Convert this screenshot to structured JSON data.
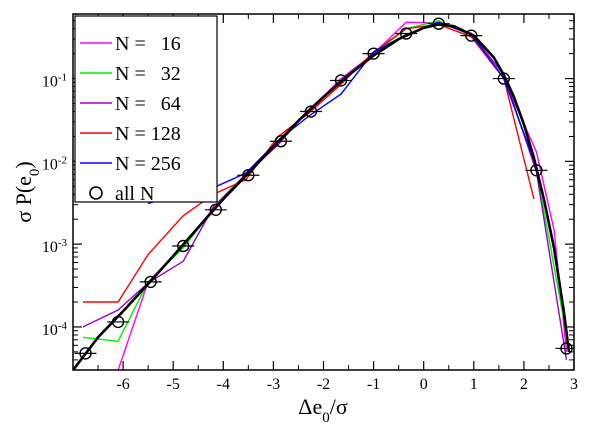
{
  "chart_data": {
    "type": "line",
    "xlabel": "Δe0/σ",
    "ylabel": "σ P(e0)",
    "xlim": [
      -7,
      3
    ],
    "ylim_log10": [
      -4.52,
      -0.22
    ],
    "y_scale": "log",
    "grid": false,
    "legend_placement": "top-left",
    "x_ticks": [
      -6,
      -5,
      -4,
      -3,
      -2,
      -1,
      0,
      1,
      2,
      3
    ],
    "x_tick_labels": [
      "-6",
      "-5",
      "-4",
      "-3",
      "-2",
      "-1",
      "0",
      "1",
      "2",
      "3"
    ],
    "y_ticks": [
      -4,
      -3,
      -2,
      -1
    ],
    "y_tick_labels": [
      "10",
      "10",
      "10",
      "10"
    ],
    "y_tick_exponents": [
      "-4",
      "-3",
      "-2",
      "-1"
    ],
    "series": [
      {
        "name": "N =   16",
        "color": "#ff00ff",
        "points": [
          [
            -6.1,
            3e-05
          ],
          [
            -5.5,
            0.00035
          ],
          [
            -4.8,
            0.00095
          ],
          [
            -4.2,
            0.0027
          ],
          [
            -3.55,
            0.007
          ],
          [
            -2.9,
            0.018
          ],
          [
            -2.3,
            0.04
          ],
          [
            -1.65,
            0.1
          ],
          [
            -1.0,
            0.2
          ],
          [
            -0.35,
            0.48
          ],
          [
            0.3,
            0.47
          ],
          [
            0.95,
            0.35
          ],
          [
            1.6,
            0.1
          ],
          [
            2.25,
            0.013
          ],
          [
            2.6,
            0.0015
          ],
          [
            2.85,
            5e-05
          ]
        ]
      },
      {
        "name": "N =   32",
        "color": "#00ee00",
        "points": [
          [
            -6.8,
            7.5e-05
          ],
          [
            -6.1,
            6.7e-05
          ],
          [
            -5.5,
            0.00035
          ],
          [
            -4.8,
            0.0009
          ],
          [
            -4.2,
            0.0026
          ],
          [
            -3.55,
            0.0068
          ],
          [
            -2.9,
            0.018
          ],
          [
            -2.3,
            0.04
          ],
          [
            -1.65,
            0.095
          ],
          [
            -1.0,
            0.2
          ],
          [
            -0.35,
            0.4
          ],
          [
            0.3,
            0.5
          ],
          [
            0.95,
            0.33
          ],
          [
            1.6,
            0.1
          ],
          [
            2.25,
            0.008
          ],
          [
            2.85,
            8e-05
          ]
        ]
      },
      {
        "name": "N =   64",
        "color": "#9900cc",
        "points": [
          [
            -6.8,
            0.0001
          ],
          [
            -6.1,
            0.00016
          ],
          [
            -5.5,
            0.00034
          ],
          [
            -4.8,
            0.00062
          ],
          [
            -4.2,
            0.0028
          ],
          [
            -3.55,
            0.007
          ],
          [
            -2.9,
            0.016
          ],
          [
            -2.3,
            0.042
          ],
          [
            -1.65,
            0.095
          ],
          [
            -1.0,
            0.2
          ],
          [
            -0.35,
            0.34
          ],
          [
            0.3,
            0.47
          ],
          [
            0.95,
            0.35
          ],
          [
            1.6,
            0.11
          ],
          [
            2.25,
            0.0075
          ],
          [
            2.85,
            4e-05
          ]
        ]
      },
      {
        "name": "N = 128",
        "color": "#ff0000",
        "points": [
          [
            -6.8,
            0.0002
          ],
          [
            -6.1,
            0.0002
          ],
          [
            -5.5,
            0.00075
          ],
          [
            -4.8,
            0.0022
          ],
          [
            -4.2,
            0.004
          ],
          [
            -3.55,
            0.006
          ],
          [
            -2.9,
            0.02
          ],
          [
            -2.3,
            0.038
          ],
          [
            -1.65,
            0.085
          ],
          [
            -1.0,
            0.21
          ],
          [
            -0.35,
            0.4
          ],
          [
            0.3,
            0.45
          ],
          [
            0.95,
            0.32
          ],
          [
            1.6,
            0.1
          ],
          [
            2.2,
            0.0035
          ]
        ]
      },
      {
        "name": "N = 256",
        "color": "#0000ff",
        "points": [
          [
            -5.5,
            0.0031
          ],
          [
            -4.8,
            0.0041
          ],
          [
            -4.2,
            0.0048
          ],
          [
            -3.55,
            0.0072
          ],
          [
            -2.9,
            0.018
          ],
          [
            -2.3,
            0.035
          ],
          [
            -1.65,
            0.065
          ],
          [
            -1.0,
            0.21
          ],
          [
            -0.35,
            0.34
          ],
          [
            0.3,
            0.48
          ],
          [
            0.95,
            0.34
          ],
          [
            1.6,
            0.1
          ],
          [
            2.25,
            0.0085
          ]
        ]
      },
      {
        "name": "all N",
        "color": "#000000",
        "marker": "circle",
        "points": [
          [
            -6.75,
            4.8e-05
          ],
          [
            -6.1,
            0.000115
          ],
          [
            -5.45,
            0.00035
          ],
          [
            -4.8,
            0.00095
          ],
          [
            -4.15,
            0.0026
          ],
          [
            -3.5,
            0.0068
          ],
          [
            -2.85,
            0.0175
          ],
          [
            -2.25,
            0.04
          ],
          [
            -1.65,
            0.095
          ],
          [
            -1.0,
            0.2
          ],
          [
            -0.35,
            0.35
          ],
          [
            0.3,
            0.46
          ],
          [
            0.95,
            0.33
          ],
          [
            1.6,
            0.1
          ],
          [
            2.25,
            0.0078
          ],
          [
            2.85,
            5.5e-05
          ]
        ]
      }
    ],
    "fit_curve": {
      "color": "#000000",
      "points": [
        [
          -7.0,
          3e-05
        ],
        [
          -6.5,
          7.5e-05
        ],
        [
          -6.0,
          0.000155
        ],
        [
          -5.5,
          0.00033
        ],
        [
          -5.0,
          0.00072
        ],
        [
          -4.5,
          0.0016
        ],
        [
          -4.0,
          0.0035
        ],
        [
          -3.5,
          0.0072
        ],
        [
          -3.0,
          0.015
        ],
        [
          -2.5,
          0.031
        ],
        [
          -2.0,
          0.06
        ],
        [
          -1.5,
          0.11
        ],
        [
          -1.0,
          0.19
        ],
        [
          -0.5,
          0.3
        ],
        [
          0.0,
          0.41
        ],
        [
          0.3,
          0.45
        ],
        [
          0.6,
          0.43
        ],
        [
          1.0,
          0.33
        ],
        [
          1.4,
          0.18
        ],
        [
          1.6,
          0.11
        ],
        [
          1.8,
          0.06
        ],
        [
          2.0,
          0.028
        ],
        [
          2.2,
          0.011
        ],
        [
          2.4,
          0.0035
        ],
        [
          2.6,
          0.0009
        ],
        [
          2.8,
          0.00015
        ],
        [
          2.9,
          5e-05
        ]
      ]
    }
  }
}
